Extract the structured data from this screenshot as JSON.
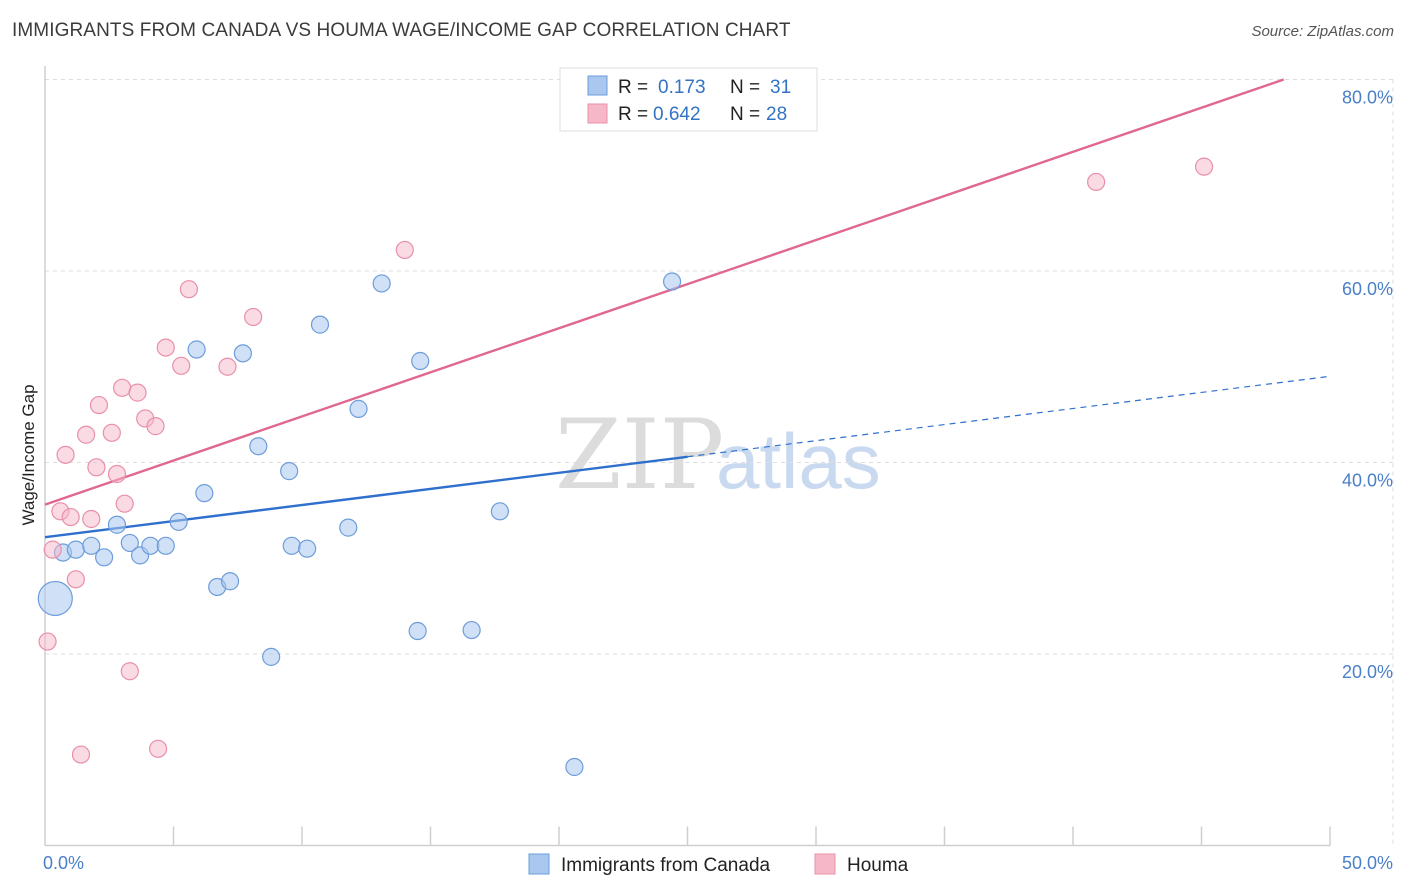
{
  "title": "IMMIGRANTS FROM CANADA VS HOUMA WAGE/INCOME GAP CORRELATION CHART",
  "source": "Source: ZipAtlas.com",
  "watermark": {
    "zip": "ZIP",
    "atlas": "atlas"
  },
  "colors": {
    "blue_fill": "#a9c7ef",
    "blue_stroke": "#6d9ddb",
    "blue_line": "#2f6fce",
    "pink_fill": "#f6b8c9",
    "pink_stroke": "#e98fa9",
    "pink_line": "#e0678f",
    "grid": "#dddddd",
    "axis_label": "#4a7fc9"
  },
  "legend": {
    "rows": [
      {
        "r_label": "R =",
        "r_value": "0.173",
        "n_label": "N =",
        "n_value": "31",
        "series": "blue"
      },
      {
        "r_label": "R =",
        "r_value": "0.642",
        "n_label": "N =",
        "n_value": "28",
        "series": "pink"
      }
    ]
  },
  "bottom_legend": [
    {
      "label": "Immigrants from Canada",
      "series": "blue"
    },
    {
      "label": "Houma",
      "series": "pink"
    }
  ],
  "chart_data": {
    "type": "scatter",
    "title": "IMMIGRANTS FROM CANADA VS HOUMA WAGE/INCOME GAP CORRELATION CHART",
    "xlabel": "",
    "ylabel": "Wage/Income Gap",
    "xlim": [
      0,
      50
    ],
    "ylim": [
      0,
      80
    ],
    "x_tick_labels": [
      "0.0%",
      "50.0%"
    ],
    "y_ticks": [
      20,
      40,
      60,
      80
    ],
    "y_tick_labels": [
      "20.0%",
      "40.0%",
      "60.0%",
      "80.0%"
    ],
    "grid": true,
    "legend_position": "top-center",
    "series": [
      {
        "name": "Immigrants from Canada",
        "color": "#a9c7ef",
        "r": 0.173,
        "n": 31,
        "points": [
          {
            "x": 0.4,
            "y": 25.8,
            "big": true
          },
          {
            "x": 0.7,
            "y": 30.6
          },
          {
            "x": 1.2,
            "y": 30.9
          },
          {
            "x": 1.8,
            "y": 31.3
          },
          {
            "x": 2.3,
            "y": 30.1
          },
          {
            "x": 2.8,
            "y": 33.5
          },
          {
            "x": 3.3,
            "y": 31.6
          },
          {
            "x": 3.7,
            "y": 30.3
          },
          {
            "x": 4.1,
            "y": 31.3
          },
          {
            "x": 4.7,
            "y": 31.3
          },
          {
            "x": 5.2,
            "y": 33.8
          },
          {
            "x": 5.9,
            "y": 51.8
          },
          {
            "x": 6.2,
            "y": 36.8
          },
          {
            "x": 6.7,
            "y": 27.0
          },
          {
            "x": 7.2,
            "y": 27.6
          },
          {
            "x": 7.7,
            "y": 51.4
          },
          {
            "x": 8.3,
            "y": 41.7
          },
          {
            "x": 8.8,
            "y": 19.7
          },
          {
            "x": 9.5,
            "y": 39.1
          },
          {
            "x": 9.6,
            "y": 31.3
          },
          {
            "x": 10.2,
            "y": 31.0
          },
          {
            "x": 10.7,
            "y": 54.4
          },
          {
            "x": 11.8,
            "y": 33.2
          },
          {
            "x": 12.2,
            "y": 45.6
          },
          {
            "x": 13.1,
            "y": 58.7
          },
          {
            "x": 14.5,
            "y": 22.4
          },
          {
            "x": 14.6,
            "y": 50.6
          },
          {
            "x": 16.6,
            "y": 22.5
          },
          {
            "x": 17.7,
            "y": 34.9
          },
          {
            "x": 20.6,
            "y": 8.2
          },
          {
            "x": 24.4,
            "y": 58.9
          }
        ],
        "trend": {
          "x0": 0,
          "y0": 32.2,
          "x1": 25,
          "y1": 40.6,
          "dash_x1": 50,
          "dash_y1": 49.0
        }
      },
      {
        "name": "Houma",
        "color": "#f6b8c9",
        "r": 0.642,
        "n": 28,
        "points": [
          {
            "x": 0.1,
            "y": 21.3
          },
          {
            "x": 0.3,
            "y": 30.9
          },
          {
            "x": 0.6,
            "y": 34.9
          },
          {
            "x": 0.8,
            "y": 40.8
          },
          {
            "x": 1.0,
            "y": 34.3
          },
          {
            "x": 1.2,
            "y": 27.8
          },
          {
            "x": 1.4,
            "y": 9.5
          },
          {
            "x": 1.6,
            "y": 42.9
          },
          {
            "x": 1.8,
            "y": 34.1
          },
          {
            "x": 2.0,
            "y": 39.5
          },
          {
            "x": 2.1,
            "y": 46.0
          },
          {
            "x": 2.6,
            "y": 43.1
          },
          {
            "x": 2.8,
            "y": 38.8
          },
          {
            "x": 3.0,
            "y": 47.8
          },
          {
            "x": 3.1,
            "y": 35.7
          },
          {
            "x": 3.3,
            "y": 18.2
          },
          {
            "x": 3.6,
            "y": 47.3
          },
          {
            "x": 3.9,
            "y": 44.6
          },
          {
            "x": 4.3,
            "y": 43.8
          },
          {
            "x": 4.4,
            "y": 10.1
          },
          {
            "x": 4.7,
            "y": 52.0
          },
          {
            "x": 5.3,
            "y": 50.1
          },
          {
            "x": 5.6,
            "y": 58.1
          },
          {
            "x": 7.1,
            "y": 50.0
          },
          {
            "x": 8.1,
            "y": 55.2
          },
          {
            "x": 14.0,
            "y": 62.2
          },
          {
            "x": 40.9,
            "y": 69.3
          },
          {
            "x": 45.1,
            "y": 70.9
          }
        ],
        "trend": {
          "x0": 0,
          "y0": 35.6,
          "x1": 48.2,
          "y1": 80.0
        }
      }
    ]
  }
}
